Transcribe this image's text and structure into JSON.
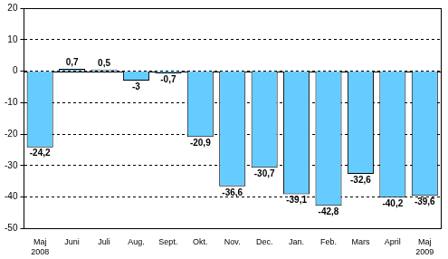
{
  "chart_data": {
    "type": "bar",
    "categories": [
      "Maj 2008",
      "Juni",
      "Juli",
      "Aug.",
      "Sept.",
      "Okt.",
      "Nov.",
      "Dec.",
      "Jan.",
      "Feb.",
      "Mars",
      "April",
      "Maj 2009"
    ],
    "values": [
      -24.2,
      0.7,
      0.5,
      -3,
      -0.7,
      -20.9,
      -36.6,
      -30.7,
      -39.1,
      -42.8,
      -32.6,
      -40.2,
      -39.6
    ],
    "value_labels": [
      "-24,2",
      "0,7",
      "0,5",
      "-3",
      "-0,7",
      "-20,9",
      "-36,6",
      "-30,7",
      "-39,1",
      "-42,8",
      "-32,6",
      "-40,2",
      "-39,6"
    ],
    "color": "#66ccff",
    "ylim": [
      -50,
      20
    ],
    "yticks": [
      -50,
      -40,
      -30,
      -20,
      -10,
      0,
      10,
      20
    ],
    "grid": true,
    "data_labels": true
  }
}
